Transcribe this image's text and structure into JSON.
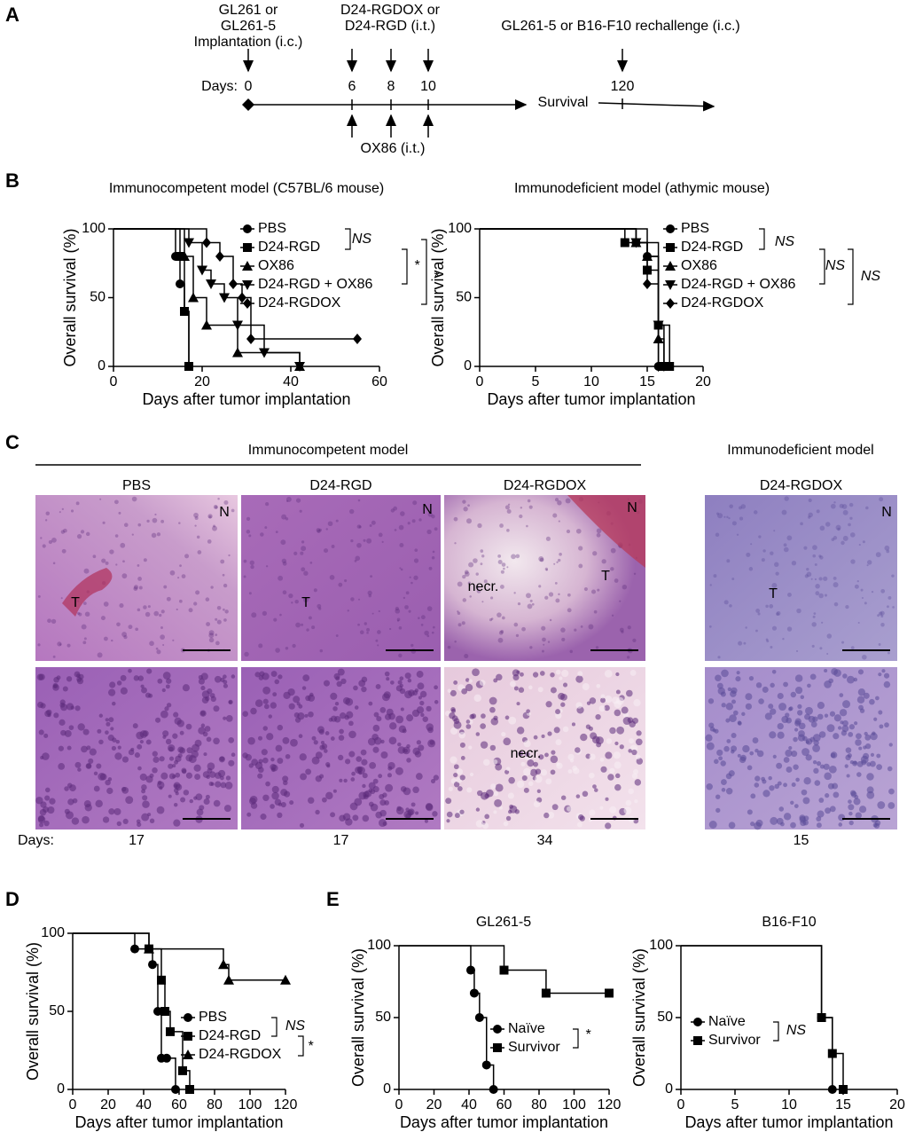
{
  "panel_labels": [
    "A",
    "B",
    "C",
    "D",
    "E"
  ],
  "timeline": {
    "implant_label": [
      "GL261 or",
      "GL261-5",
      "Implantation (i.c.)"
    ],
    "treat_label": [
      "D24-RGDOX or",
      "D24-RGD (i.t.)"
    ],
    "rechallenge_label": "GL261-5 or B16-F10 rechallenge (i.c.)",
    "days_label": "Days:",
    "days": [
      0,
      6,
      8,
      10,
      120
    ],
    "ox86_label": "OX86 (i.t.)",
    "survival_label": "Survival"
  },
  "chart_data": [
    {
      "type": "step",
      "title": "Immunocompetent model (C57BL/6 mouse)",
      "xlabel": "Days after tumor implantation",
      "ylabel": "Overall survival (%)",
      "xlim": [
        0,
        60
      ],
      "xticks": [
        0,
        20,
        40,
        60
      ],
      "ylim": [
        0,
        100
      ],
      "yticks": [
        0,
        50,
        100
      ],
      "annotations": [
        "NS",
        "*",
        "*"
      ],
      "series": [
        {
          "name": "PBS",
          "marker": "circle",
          "color": "#000000",
          "x": [
            0,
            14,
            15,
            16,
            17
          ],
          "values": [
            100,
            80,
            60,
            40,
            0
          ]
        },
        {
          "name": "D24-RGD",
          "marker": "square",
          "color": "#000000",
          "x": [
            0,
            15,
            16,
            17
          ],
          "values": [
            100,
            80,
            40,
            0
          ]
        },
        {
          "name": "OX86",
          "marker": "triangle",
          "color": "#000000",
          "x": [
            0,
            16,
            18,
            21,
            28,
            42
          ],
          "values": [
            100,
            80,
            50,
            30,
            10,
            0
          ]
        },
        {
          "name": "D24-RGD + OX86",
          "marker": "triangle-down",
          "color": "#000000",
          "x": [
            0,
            17,
            20,
            22,
            25,
            28,
            34,
            42
          ],
          "values": [
            100,
            90,
            70,
            60,
            50,
            30,
            10,
            0
          ]
        },
        {
          "name": "D24-RGDOX",
          "marker": "diamond",
          "color": "#000000",
          "x": [
            0,
            21,
            24,
            27,
            29,
            31,
            55
          ],
          "values": [
            100,
            90,
            80,
            60,
            50,
            20,
            20
          ]
        }
      ]
    },
    {
      "type": "step",
      "title": "Immunodeficient model (athymic mouse)",
      "xlabel": "Days after tumor implantation",
      "ylabel": "Overall survival (%)",
      "xlim": [
        0,
        20
      ],
      "xticks": [
        0,
        5,
        10,
        15,
        20
      ],
      "ylim": [
        0,
        100
      ],
      "yticks": [
        0,
        50,
        100
      ],
      "annotations": [
        "NS",
        "NS",
        "NS"
      ],
      "series": [
        {
          "name": "PBS",
          "marker": "circle",
          "color": "#000000",
          "x": [
            0,
            14,
            15,
            16
          ],
          "values": [
            100,
            90,
            80,
            0
          ]
        },
        {
          "name": "D24-RGD",
          "marker": "square",
          "color": "#000000",
          "x": [
            0,
            13,
            15,
            16,
            17
          ],
          "values": [
            100,
            90,
            70,
            30,
            0
          ]
        },
        {
          "name": "OX86",
          "marker": "triangle",
          "color": "#000000",
          "x": [
            0,
            14,
            15,
            16,
            16.5
          ],
          "values": [
            100,
            90,
            80,
            20,
            0
          ]
        },
        {
          "name": "D24-RGD + OX86",
          "marker": "triangle-down",
          "color": "#000000",
          "x": [
            0,
            14,
            16,
            16.5
          ],
          "values": [
            100,
            90,
            30,
            0
          ]
        },
        {
          "name": "D24-RGDOX",
          "marker": "diamond",
          "color": "#000000",
          "x": [
            0,
            15,
            16
          ],
          "values": [
            100,
            60,
            0
          ]
        }
      ]
    },
    {
      "type": "step",
      "xlabel": "Days after tumor implantation",
      "ylabel": "Overall survival (%)",
      "xlim": [
        0,
        120
      ],
      "xticks": [
        0,
        20,
        40,
        60,
        80,
        100,
        120
      ],
      "ylim": [
        0,
        100
      ],
      "yticks": [
        0,
        50,
        100
      ],
      "annotations": [
        "NS",
        "*"
      ],
      "series": [
        {
          "name": "PBS",
          "marker": "circle",
          "color": "#000000",
          "x": [
            0,
            35,
            45,
            48,
            50,
            53,
            58
          ],
          "values": [
            100,
            90,
            80,
            50,
            20,
            20,
            0
          ]
        },
        {
          "name": "D24-RGD",
          "marker": "square",
          "color": "#000000",
          "x": [
            0,
            43,
            50,
            52,
            55,
            62,
            66
          ],
          "values": [
            100,
            90,
            70,
            50,
            37,
            12,
            0
          ]
        },
        {
          "name": "D24-RGDOX",
          "marker": "triangle",
          "color": "#000000",
          "x": [
            0,
            43,
            85,
            88,
            120
          ],
          "values": [
            100,
            90,
            80,
            70,
            70
          ]
        }
      ]
    },
    {
      "type": "step",
      "title": "GL261-5",
      "xlabel": "Days after tumor implantation",
      "ylabel": "Overall survival (%)",
      "xlim": [
        0,
        120
      ],
      "xticks": [
        0,
        20,
        40,
        60,
        80,
        100,
        120
      ],
      "ylim": [
        0,
        100
      ],
      "yticks": [
        0,
        50,
        100
      ],
      "annotations": [
        "*"
      ],
      "series": [
        {
          "name": "Naïve",
          "marker": "circle",
          "color": "#000000",
          "x": [
            0,
            41,
            43,
            46,
            50,
            54
          ],
          "values": [
            100,
            83,
            67,
            50,
            17,
            0
          ]
        },
        {
          "name": "Survivor",
          "marker": "square",
          "color": "#000000",
          "x": [
            0,
            60,
            84,
            120
          ],
          "values": [
            100,
            83,
            67,
            67
          ]
        }
      ]
    },
    {
      "type": "step",
      "title": "B16-F10",
      "xlabel": "Days after tumor implantation",
      "ylabel": "Overall survival (%)",
      "xlim": [
        0,
        20
      ],
      "xticks": [
        0,
        5,
        10,
        15,
        20
      ],
      "ylim": [
        0,
        100
      ],
      "yticks": [
        0,
        50,
        100
      ],
      "annotations": [
        "NS"
      ],
      "series": [
        {
          "name": "Naïve",
          "marker": "circle",
          "color": "#000000",
          "x": [
            0,
            13,
            14
          ],
          "values": [
            100,
            50,
            0
          ]
        },
        {
          "name": "Survivor",
          "marker": "square",
          "color": "#000000",
          "x": [
            0,
            13,
            14,
            15
          ],
          "values": [
            100,
            50,
            25,
            0
          ]
        }
      ]
    }
  ],
  "histology": {
    "group_labels": [
      "Immunocompetent model",
      "Immunodeficient model"
    ],
    "days_label": "Days:",
    "columns": [
      {
        "header": "PBS",
        "days": "17",
        "top_labels": [
          "N",
          "T"
        ],
        "bottom_labels": []
      },
      {
        "header": "D24-RGD",
        "days": "17",
        "top_labels": [
          "N",
          "T"
        ],
        "bottom_labels": []
      },
      {
        "header": "D24-RGDOX",
        "days": "34",
        "top_labels": [
          "N",
          "necr.",
          "T"
        ],
        "bottom_labels": [
          "necr."
        ]
      },
      {
        "header": "D24-RGDOX",
        "days": "15",
        "top_labels": [
          "N",
          "T"
        ],
        "bottom_labels": []
      }
    ]
  }
}
